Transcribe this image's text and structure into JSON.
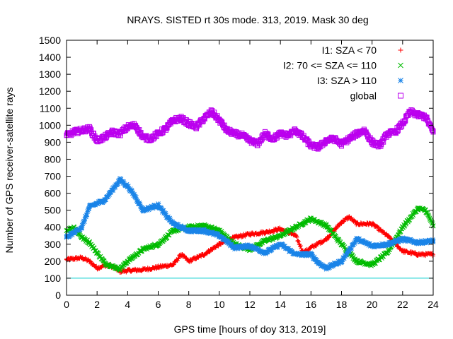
{
  "chart_data": {
    "type": "scatter",
    "title": "NRAYS. SISTED rt 30s mode. 313, 2019. Mask 30 deg",
    "xlabel": "GPS time [hours of doy 313, 2019]",
    "ylabel": "Number of GPS receiver-satellite rays",
    "xlim": [
      0,
      24
    ],
    "ylim": [
      0,
      1500
    ],
    "xticks": [
      0,
      2,
      4,
      6,
      8,
      10,
      12,
      14,
      16,
      18,
      20,
      22,
      24
    ],
    "yticks": [
      0,
      100,
      200,
      300,
      400,
      500,
      600,
      700,
      800,
      900,
      1000,
      1100,
      1200,
      1300,
      1400,
      1500
    ],
    "legend_position": "top-right",
    "reference_line": {
      "y": 100,
      "color": "#00cccc"
    },
    "series": [
      {
        "name": "I1: SZA < 70",
        "color": "#ff0000",
        "marker": "plus",
        "x": [
          0,
          1,
          1.5,
          2,
          2.5,
          3,
          3.5,
          4,
          5,
          6,
          7,
          7.5,
          8,
          9,
          10,
          11,
          12,
          13,
          14,
          15,
          15.5,
          16,
          17,
          18,
          18.5,
          19,
          20,
          21,
          22,
          23,
          24
        ],
        "y": [
          210,
          220,
          200,
          160,
          175,
          170,
          140,
          145,
          150,
          165,
          180,
          240,
          200,
          240,
          300,
          340,
          360,
          370,
          390,
          350,
          250,
          280,
          330,
          430,
          460,
          420,
          420,
          350,
          260,
          240,
          240
        ]
      },
      {
        "name": "I2: 70 <= SZA <= 110",
        "color": "#00bb00",
        "marker": "x",
        "x": [
          0,
          0.5,
          1,
          1.5,
          2,
          2.5,
          3,
          3.5,
          4,
          5,
          6,
          7,
          8,
          9,
          10,
          11,
          12,
          13,
          14,
          15,
          16,
          16.5,
          17,
          18,
          19,
          20,
          21,
          22,
          23,
          23.5,
          24
        ],
        "y": [
          380,
          400,
          340,
          310,
          250,
          190,
          170,
          155,
          200,
          270,
          300,
          380,
          400,
          410,
          380,
          300,
          270,
          320,
          350,
          400,
          450,
          430,
          410,
          300,
          200,
          180,
          250,
          400,
          510,
          500,
          410
        ]
      },
      {
        "name": "I3: SZA > 110",
        "color": "#1a84e8",
        "marker": "star",
        "x": [
          0,
          1,
          1.5,
          2,
          2.5,
          3,
          3.5,
          4,
          4.5,
          5,
          6,
          6.5,
          7,
          8,
          9,
          10,
          11,
          12,
          13,
          14,
          15,
          16,
          16.5,
          17,
          18,
          19,
          20,
          21,
          22,
          23,
          24
        ],
        "y": [
          340,
          400,
          520,
          540,
          560,
          620,
          680,
          640,
          580,
          500,
          530,
          470,
          420,
          380,
          380,
          350,
          280,
          290,
          250,
          300,
          240,
          240,
          190,
          160,
          200,
          330,
          290,
          300,
          330,
          310,
          320
        ]
      },
      {
        "name": "global",
        "color": "#bb00ee",
        "marker": "square",
        "x": [
          0,
          0.5,
          1,
          1.5,
          2,
          2.5,
          3,
          3.5,
          4,
          4.5,
          5,
          5.5,
          6,
          6.5,
          7,
          7.5,
          8,
          8.5,
          9,
          9.5,
          10,
          10.5,
          11,
          11.5,
          12,
          12.5,
          13,
          13.5,
          14,
          14.5,
          15,
          15.5,
          16,
          16.5,
          17,
          17.5,
          18,
          18.5,
          19,
          19.5,
          20,
          20.5,
          21,
          21.5,
          22,
          22.5,
          23,
          23.5,
          24
        ],
        "y": [
          940,
          960,
          970,
          980,
          910,
          930,
          960,
          950,
          990,
          1000,
          930,
          920,
          950,
          980,
          1030,
          1040,
          1010,
          990,
          1040,
          1080,
          1030,
          970,
          950,
          940,
          910,
          890,
          950,
          920,
          950,
          940,
          970,
          930,
          880,
          870,
          910,
          920,
          890,
          920,
          950,
          970,
          900,
          880,
          950,
          960,
          1010,
          1080,
          1060,
          1050,
          960
        ]
      }
    ]
  }
}
